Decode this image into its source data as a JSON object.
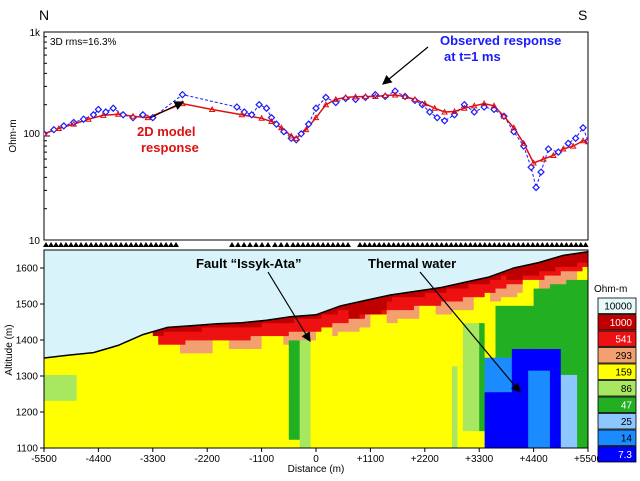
{
  "chart_data": [
    {
      "type": "line",
      "corner_labels": {
        "left": "N",
        "right": "S"
      },
      "rms_label": "3D rms=16.3%",
      "ylabel": "Ohm-m",
      "yscale": "log",
      "ylim": [
        10,
        1000
      ],
      "ytick_labels": [
        "1k",
        "100",
        "10"
      ],
      "xlim": [
        -5500,
        5500
      ],
      "series": [
        {
          "name": "Observed response",
          "style": "dashed-blue-diamonds",
          "color": "#1a1aff",
          "x": [
            -5500,
            -5300,
            -5100,
            -4900,
            -4700,
            -4500,
            -4400,
            -4250,
            -4100,
            -3900,
            -3700,
            -3500,
            -3300,
            -2700,
            -1600,
            -1450,
            -1300,
            -1150,
            -1000,
            -900,
            -800,
            -650,
            -500,
            -400,
            -300,
            -150,
            0,
            200,
            400,
            600,
            800,
            1000,
            1200,
            1400,
            1600,
            1800,
            2000,
            2150,
            2300,
            2450,
            2600,
            2800,
            3000,
            3200,
            3400,
            3600,
            3800,
            4000,
            4200,
            4350,
            4450,
            4550,
            4700,
            4900,
            5100,
            5250,
            5400,
            5500
          ],
          "y": [
            105,
            115,
            125,
            135,
            145,
            160,
            180,
            170,
            185,
            160,
            150,
            160,
            150,
            250,
            190,
            170,
            160,
            200,
            185,
            150,
            130,
            110,
            95,
            92,
            105,
            130,
            185,
            235,
            210,
            230,
            225,
            235,
            250,
            240,
            270,
            240,
            220,
            200,
            170,
            150,
            140,
            160,
            200,
            170,
            190,
            180,
            155,
            110,
            80,
            50,
            32,
            45,
            75,
            70,
            85,
            95,
            120,
            90
          ]
        },
        {
          "name": "2D model response",
          "style": "solid-red-triangles",
          "color": "#e01010",
          "x": [
            -5500,
            -5200,
            -4900,
            -4600,
            -4300,
            -4000,
            -3700,
            -3400,
            -2700,
            -2100,
            -1500,
            -1100,
            -900,
            -700,
            -500,
            -400,
            -200,
            0,
            200,
            400,
            600,
            800,
            1000,
            1200,
            1400,
            1600,
            1800,
            2000,
            2200,
            2400,
            2600,
            2800,
            3000,
            3200,
            3400,
            3600,
            3800,
            4000,
            4200,
            4400,
            4600,
            4800,
            5000,
            5200,
            5400,
            5500
          ],
          "y": [
            105,
            118,
            130,
            145,
            158,
            162,
            155,
            150,
            205,
            180,
            160,
            148,
            138,
            120,
            100,
            95,
            115,
            150,
            200,
            225,
            235,
            238,
            240,
            240,
            245,
            248,
            240,
            225,
            205,
            185,
            170,
            172,
            185,
            195,
            205,
            195,
            155,
            120,
            85,
            55,
            60,
            65,
            75,
            80,
            90,
            88
          ]
        }
      ],
      "annotations": [
        {
          "text": "2D model",
          "color": "#e01010"
        },
        {
          "text": "response",
          "color": "#e01010"
        },
        {
          "text": "Observed response",
          "color": "#1a1aff"
        },
        {
          "text": "at t=1 ms",
          "color": "#1a1aff"
        }
      ]
    },
    {
      "type": "heatmap",
      "title": "",
      "xlabel": "Distance (m)",
      "ylabel": "Altitude (m)",
      "xlim": [
        -5500,
        5500
      ],
      "ylim": [
        1100,
        1650
      ],
      "x_tick_labels": [
        "-5500",
        "-4400",
        "-3300",
        "-2200",
        "-1100",
        "0",
        "+1100",
        "+2200",
        "+3300",
        "+4400",
        "+5500"
      ],
      "y_tick_labels": [
        "1600",
        "1500",
        "1400",
        "1300",
        "1200",
        "1100"
      ],
      "legend_title": "Ohm-m",
      "legend": [
        {
          "label": "10000",
          "color": "#e6fafa"
        },
        {
          "label": "1000",
          "color": "#c00000"
        },
        {
          "label": "541",
          "color": "#ee1111"
        },
        {
          "label": "293",
          "color": "#f2a070"
        },
        {
          "label": "159",
          "color": "#ffff00"
        },
        {
          "label": "86",
          "color": "#a8e860"
        },
        {
          "label": "47",
          "color": "#22b022"
        },
        {
          "label": "25",
          "color": "#8cc8ff"
        },
        {
          "label": "14",
          "color": "#1a8cff"
        },
        {
          "label": "7.3",
          "color": "#0000ff"
        }
      ],
      "topography": [
        [
          -5500,
          1350
        ],
        [
          -5000,
          1358
        ],
        [
          -4500,
          1365
        ],
        [
          -4000,
          1385
        ],
        [
          -3500,
          1415
        ],
        [
          -3000,
          1435
        ],
        [
          -2500,
          1440
        ],
        [
          -2000,
          1445
        ],
        [
          -1500,
          1448
        ],
        [
          -1000,
          1455
        ],
        [
          -500,
          1465
        ],
        [
          0,
          1470
        ],
        [
          500,
          1495
        ],
        [
          1000,
          1510
        ],
        [
          1500,
          1525
        ],
        [
          2000,
          1535
        ],
        [
          2500,
          1545
        ],
        [
          3000,
          1560
        ],
        [
          3500,
          1575
        ],
        [
          4000,
          1600
        ],
        [
          4500,
          1615
        ],
        [
          5000,
          1635
        ],
        [
          5500,
          1645
        ]
      ],
      "labels": [
        {
          "text": "Fault “Issyk-Ata”"
        },
        {
          "text": "Thermal water"
        }
      ]
    }
  ]
}
